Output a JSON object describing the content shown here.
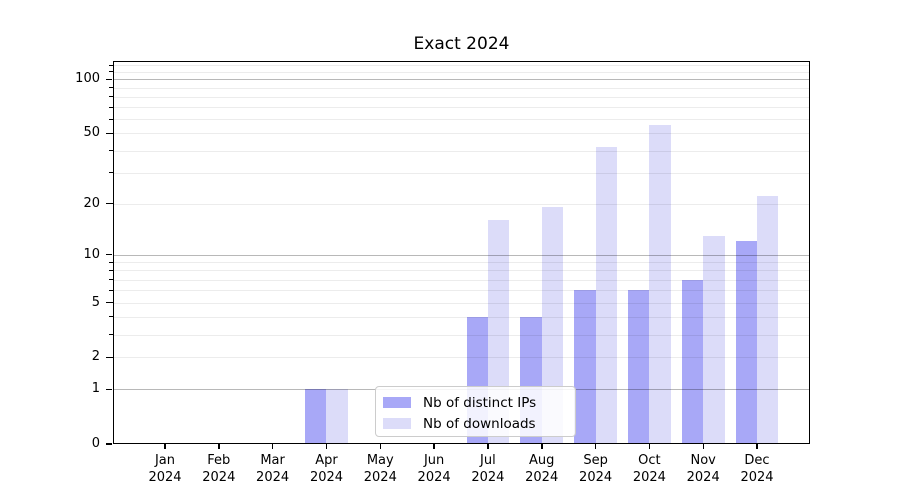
{
  "title": "Exact 2024",
  "chart_data": {
    "type": "bar",
    "title": "Exact 2024",
    "categories": [
      "Jan",
      "Feb",
      "Mar",
      "Apr",
      "May",
      "Jun",
      "Jul",
      "Aug",
      "Sep",
      "Oct",
      "Nov",
      "Dec"
    ],
    "year": "2024",
    "series": [
      {
        "name": "Nb of distinct IPs",
        "color": "#a8a8f7",
        "values": [
          0,
          0,
          0,
          1,
          0,
          0,
          4,
          4,
          6,
          6,
          7,
          12
        ]
      },
      {
        "name": "Nb of downloads",
        "color": "#dcdcf9",
        "values": [
          0,
          0,
          0,
          1,
          0,
          0,
          16,
          19,
          42,
          56,
          13,
          22
        ]
      }
    ],
    "xlabel": "",
    "ylabel": "",
    "yscale": "log1p",
    "ylim": [
      0,
      126
    ],
    "ytick_labels": [
      0,
      1,
      2,
      5,
      10,
      20,
      50,
      100
    ],
    "grid": {
      "on": true,
      "major_lines": [
        1,
        10,
        100
      ],
      "minor_lines": [
        2,
        3,
        4,
        5,
        6,
        7,
        8,
        9,
        20,
        30,
        40,
        50,
        60,
        70,
        80,
        90,
        110,
        120
      ]
    },
    "legend_position": "inside bottom center-left"
  },
  "colors": {
    "bar_dark": "#a8a8f7",
    "bar_light": "#dcdcf9",
    "spine": "#000000",
    "background": "#ffffff"
  }
}
